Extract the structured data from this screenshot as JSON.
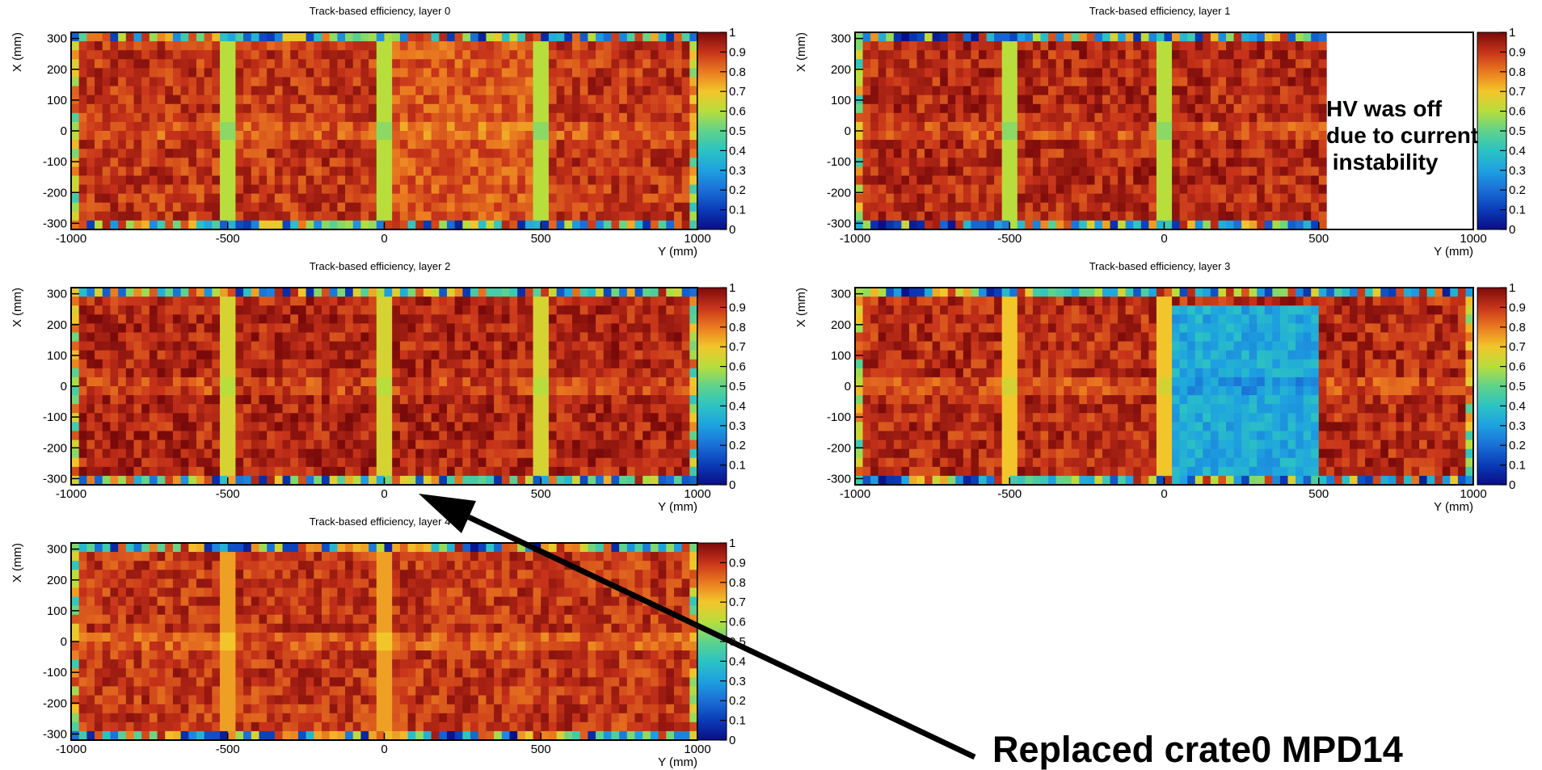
{
  "chart_data": [
    {
      "type": "heatmap",
      "title": "Track-based efficiency, layer 0",
      "xlabel": "Y (mm)",
      "ylabel": "X (mm)",
      "xlim": [
        -1000,
        1000
      ],
      "ylim": [
        -320,
        320
      ],
      "x_ticks": [
        "-1000",
        "-500",
        "0",
        "500",
        "1000"
      ],
      "y_ticks": [
        "300",
        "200",
        "100",
        "0",
        "-100",
        "-200",
        "-300"
      ],
      "zlim": [
        0,
        1
      ],
      "z_ticks": [
        "1",
        "0.9",
        "0.8",
        "0.7",
        "0.6",
        "0.5",
        "0.4",
        "0.3",
        "0.2",
        "0.1",
        "0"
      ],
      "active_y_range": [
        -1000,
        1000
      ],
      "typical_efficiency": 0.9,
      "gap_lines_y": [
        -500,
        0,
        500
      ],
      "gap_efficiency": 0.6,
      "low_region": {
        "y_range": [
          0,
          500
        ],
        "x_range": [
          -320,
          320
        ],
        "efficiency": 0.85
      }
    },
    {
      "type": "heatmap",
      "title": "Track-based efficiency, layer 1",
      "xlabel": "Y (mm)",
      "ylabel": "X (mm)",
      "xlim": [
        -1000,
        1000
      ],
      "ylim": [
        -320,
        320
      ],
      "x_ticks": [
        "-1000",
        "-500",
        "0",
        "500",
        "1000"
      ],
      "y_ticks": [
        "300",
        "200",
        "100",
        "0",
        "-100",
        "-200",
        "-300"
      ],
      "zlim": [
        0,
        1
      ],
      "z_ticks": [
        "1",
        "0.9",
        "0.8",
        "0.7",
        "0.6",
        "0.5",
        "0.4",
        "0.3",
        "0.2",
        "0.1",
        "0"
      ],
      "active_y_range": [
        -1000,
        520
      ],
      "typical_efficiency": 0.92,
      "gap_lines_y": [
        -500,
        0
      ],
      "gap_efficiency": 0.6
    },
    {
      "type": "heatmap",
      "title": "Track-based efficiency, layer 2",
      "xlabel": "Y (mm)",
      "ylabel": "X (mm)",
      "xlim": [
        -1000,
        1000
      ],
      "ylim": [
        -320,
        320
      ],
      "x_ticks": [
        "-1000",
        "-500",
        "0",
        "500",
        "1000"
      ],
      "y_ticks": [
        "300",
        "200",
        "100",
        "0",
        "-100",
        "-200",
        "-300"
      ],
      "zlim": [
        0,
        1
      ],
      "z_ticks": [
        "1",
        "0.9",
        "0.8",
        "0.7",
        "0.6",
        "0.5",
        "0.4",
        "0.3",
        "0.2",
        "0.1",
        "0"
      ],
      "active_y_range": [
        -1000,
        1000
      ],
      "typical_efficiency": 0.93,
      "gap_lines_y": [
        -500,
        0,
        500
      ],
      "gap_efficiency": 0.65
    },
    {
      "type": "heatmap",
      "title": "Track-based efficiency, layer 3",
      "xlabel": "Y (mm)",
      "ylabel": "X (mm)",
      "xlim": [
        -1000,
        1000
      ],
      "ylim": [
        -320,
        320
      ],
      "x_ticks": [
        "-1000",
        "-500",
        "0",
        "500",
        "1000"
      ],
      "y_ticks": [
        "300",
        "200",
        "100",
        "0",
        "-100",
        "-200",
        "-300"
      ],
      "zlim": [
        0,
        1
      ],
      "z_ticks": [
        "1",
        "0.9",
        "0.8",
        "0.7",
        "0.6",
        "0.5",
        "0.4",
        "0.3",
        "0.2",
        "0.1",
        "0"
      ],
      "active_y_range": [
        -1000,
        1000
      ],
      "typical_efficiency": 0.92,
      "gap_lines_y": [
        -500,
        0
      ],
      "gap_efficiency": 0.7,
      "low_region": {
        "y_range": [
          0,
          510
        ],
        "x_range": [
          -320,
          270
        ],
        "efficiency": 0.33
      }
    },
    {
      "type": "heatmap",
      "title": "Track-based efficiency, layer 4",
      "xlabel": "Y (mm)",
      "ylabel": "X (mm)",
      "xlim": [
        -1000,
        1000
      ],
      "ylim": [
        -320,
        320
      ],
      "x_ticks": [
        "-1000",
        "-500",
        "0",
        "500",
        "1000"
      ],
      "y_ticks": [
        "300",
        "200",
        "100",
        "0",
        "-100",
        "-200",
        "-300"
      ],
      "zlim": [
        0,
        1
      ],
      "z_ticks": [
        "1",
        "0.9",
        "0.8",
        "0.7",
        "0.6",
        "0.5",
        "0.4",
        "0.3",
        "0.2",
        "0.1",
        "0"
      ],
      "active_y_range": [
        -1000,
        1000
      ],
      "typical_efficiency": 0.9,
      "gap_lines_y": [
        -500,
        0
      ],
      "gap_efficiency": 0.75
    }
  ],
  "annotations": {
    "hv_note": [
      "HV was off",
      "due to current",
      " instability"
    ],
    "replaced_note": "Replaced crate0 MPD14"
  }
}
